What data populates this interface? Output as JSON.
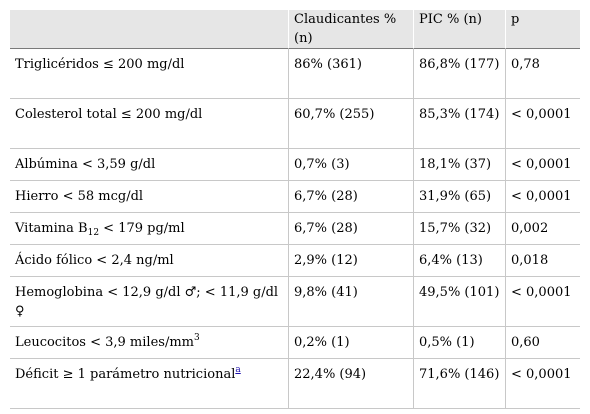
{
  "table": {
    "headers": [
      "",
      "Claudicantes % (n)",
      "PIC % (n)",
      "p"
    ],
    "rows": [
      {
        "label": "Triglicéridos ≤ 200 mg/dl",
        "claudicantes": "86% (361)",
        "pic": "86,8% (177)",
        "p": "0,78"
      },
      {
        "label": "Colesterol total ≤ 200 mg/dl",
        "claudicantes": "60,7% (255)",
        "pic": "85,3% (174)",
        "p": "< 0,0001"
      },
      {
        "label": "Albúmina < 3,59 g/dl",
        "claudicantes": "0,7% (3)",
        "pic": "18,1% (37)",
        "p": "< 0,0001"
      },
      {
        "label": "Hierro < 58 mcg/dl",
        "claudicantes": "6,7% (28)",
        "pic": "31,9% (65)",
        "p": "< 0,0001"
      },
      {
        "label_pre": "Vitamina B",
        "label_sub": "12",
        "label_post": " < 179 pg/ml",
        "claudicantes": "6,7% (28)",
        "pic": "15,7% (32)",
        "p": "0,002"
      },
      {
        "label": "Ácido fólico < 2,4 ng/ml",
        "claudicantes": "2,9% (12)",
        "pic": "6,4% (13)",
        "p": "0,018"
      },
      {
        "label": "Hemoglobina < 12,9 g/dl ♂; < 11,9 g/dl ♀",
        "claudicantes": "9,8% (41)",
        "pic": "49,5% (101)",
        "p": "< 0,0001"
      },
      {
        "label_pre": "Leucocitos < 3,9 miles/mm",
        "label_sup": "3",
        "claudicantes": "0,2% (1)",
        "pic": "0,5% (1)",
        "p": "0,60"
      },
      {
        "label_pre": "Déficit ≥ 1 parámetro nutricional",
        "label_footnote": "a",
        "claudicantes": "22,4% (94)",
        "pic": "71,6% (146)",
        "p": "< 0,0001"
      }
    ]
  }
}
